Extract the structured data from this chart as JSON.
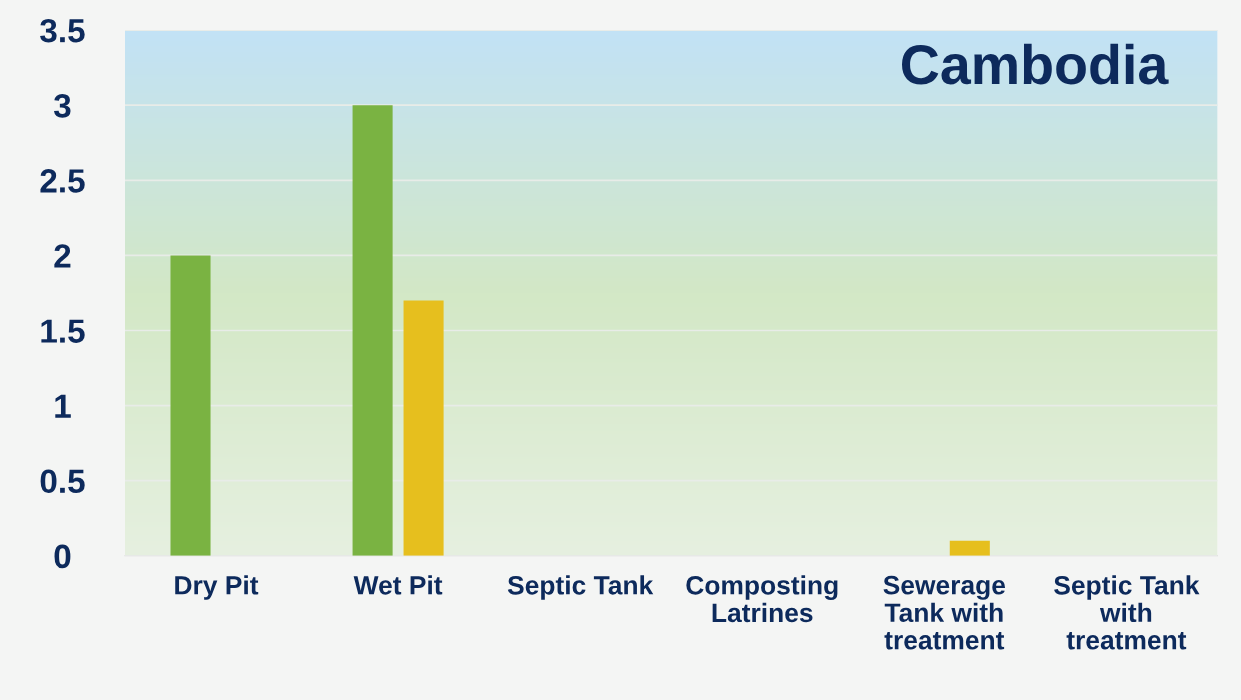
{
  "chart_data": {
    "type": "bar",
    "title": "Cambodia",
    "categories": [
      "Dry Pit",
      "Wet Pit",
      "Septic Tank",
      "Composting\nLatrines",
      "Sewerage\nTank with\ntreatment",
      "Septic Tank\nwith\ntreatment"
    ],
    "series": [
      {
        "color": "#7ab342",
        "values": [
          2,
          3,
          null,
          null,
          null,
          null
        ]
      },
      {
        "color": "#e6bf1e",
        "values": [
          null,
          1.7,
          null,
          null,
          0.1,
          null
        ]
      }
    ],
    "ylim": [
      0,
      3.5
    ],
    "yticks": [
      0,
      0.5,
      1,
      1.5,
      2,
      2.5,
      3,
      3.5
    ],
    "grid": "y",
    "legend": false
  }
}
